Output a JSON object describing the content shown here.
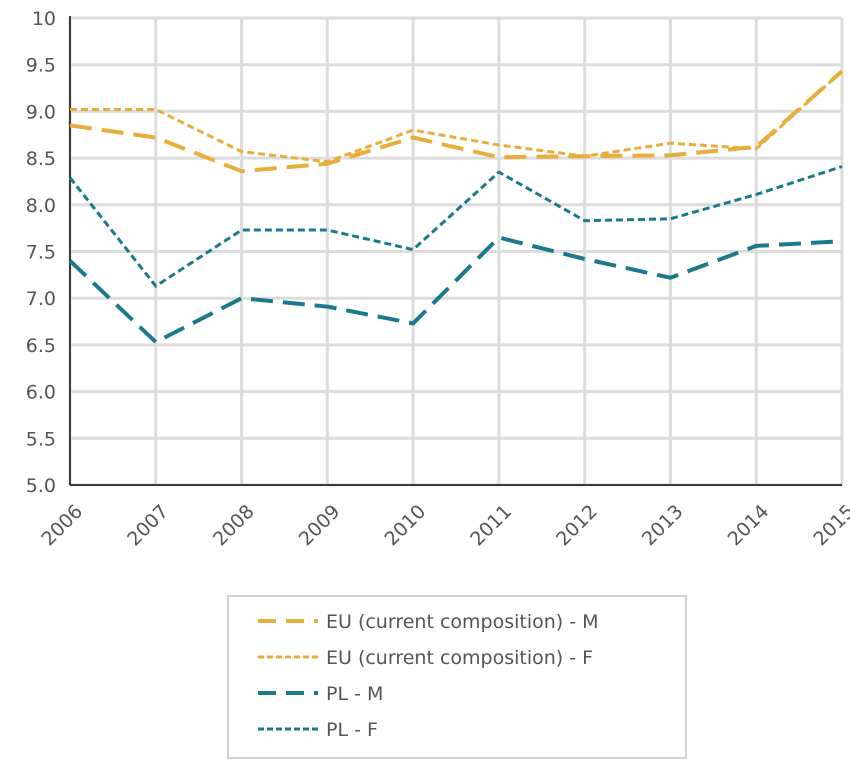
{
  "chart_data": {
    "type": "line",
    "title": "",
    "xlabel": "",
    "ylabel": "",
    "categories": [
      "2006",
      "2007",
      "2008",
      "2009",
      "2010",
      "2011",
      "2012",
      "2013",
      "2014",
      "2015"
    ],
    "ylim": [
      5.0,
      10
    ],
    "y_ticks": [
      "5.0",
      "5.5",
      "6.0",
      "6.5",
      "7.0",
      "7.5",
      "8.0",
      "8.5",
      "9.0",
      "9.5",
      "10"
    ],
    "grid": true,
    "legend_position": "bottom",
    "series": [
      {
        "name": "EU (current composition) - M",
        "color": "#E8AE3C",
        "dash": "long",
        "values": [
          8.85,
          8.72,
          8.36,
          8.44,
          8.72,
          8.51,
          8.52,
          8.53,
          8.62,
          9.43
        ]
      },
      {
        "name": "EU (current composition) - F",
        "color": "#E8AE3C",
        "dash": "short",
        "values": [
          9.02,
          9.02,
          8.57,
          8.46,
          8.8,
          8.64,
          8.52,
          8.66,
          8.6,
          9.43
        ]
      },
      {
        "name": "PL - M",
        "color": "#1A7A8C",
        "dash": "long",
        "values": [
          7.4,
          6.53,
          7.0,
          6.91,
          6.73,
          7.65,
          7.42,
          7.22,
          7.56,
          7.61
        ]
      },
      {
        "name": "PL - F",
        "color": "#1A7A8C",
        "dash": "short",
        "values": [
          8.29,
          7.13,
          7.73,
          7.73,
          7.52,
          8.35,
          7.83,
          7.85,
          8.11,
          8.41
        ]
      }
    ]
  }
}
